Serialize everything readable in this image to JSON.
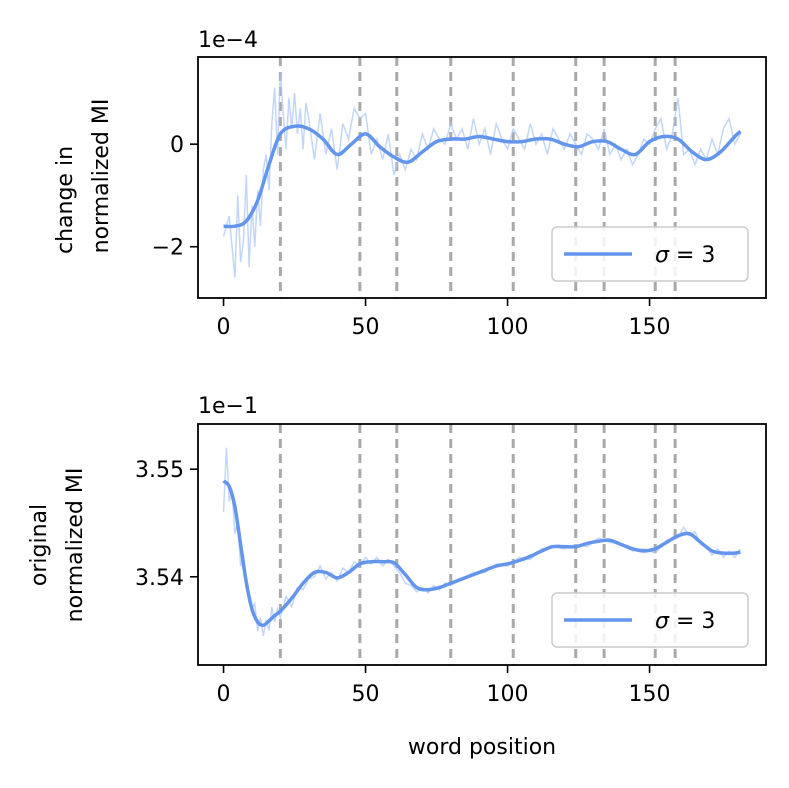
{
  "chart_data": [
    {
      "type": "line",
      "ylabel_lines": [
        "change in",
        "normalized MI"
      ],
      "scale_label": "1e−4",
      "xlim": [
        -9,
        191
      ],
      "ylim": [
        -3.0,
        1.7
      ],
      "x_ticks": [
        0,
        50,
        100,
        150
      ],
      "x_tick_labels": [
        "0",
        "50",
        "100",
        "150"
      ],
      "y_ticks": [
        -2,
        0
      ],
      "y_tick_labels": [
        "−2",
        "0"
      ],
      "vlines": [
        20,
        48,
        61,
        80,
        102,
        124,
        134,
        152,
        159
      ],
      "legend": {
        "label": "σ = 3",
        "sigma": "σ",
        "rest": " = 3",
        "position": "lower-right"
      },
      "series": [
        {
          "name": "σ = 3",
          "style": "smoothed",
          "x": [
            0,
            4,
            8,
            12,
            16,
            20,
            25,
            30,
            35,
            40,
            45,
            50,
            55,
            60,
            65,
            70,
            75,
            80,
            85,
            90,
            95,
            100,
            105,
            110,
            115,
            120,
            125,
            130,
            135,
            140,
            145,
            150,
            155,
            160,
            165,
            170,
            175,
            180,
            182
          ],
          "values": [
            -1.6,
            -1.6,
            -1.5,
            -1.1,
            -0.4,
            0.2,
            0.35,
            0.3,
            0.1,
            -0.2,
            0.0,
            0.2,
            -0.05,
            -0.25,
            -0.35,
            -0.15,
            0.05,
            0.1,
            0.1,
            0.15,
            0.1,
            0.05,
            0.05,
            0.1,
            0.1,
            0.0,
            -0.05,
            0.05,
            0.05,
            -0.1,
            -0.2,
            0.05,
            0.15,
            0.1,
            -0.15,
            -0.3,
            -0.15,
            0.15,
            0.25
          ]
        }
      ],
      "raw": {
        "x": [
          0,
          2,
          4,
          5,
          6,
          7,
          8,
          9,
          10,
          11,
          12,
          13,
          14,
          15,
          16,
          17,
          18,
          19,
          20,
          21,
          22,
          23,
          24,
          25,
          26,
          27,
          28,
          29,
          30,
          32,
          34,
          36,
          38,
          40,
          42,
          44,
          46,
          48,
          50,
          52,
          54,
          56,
          58,
          60,
          62,
          64,
          66,
          68,
          70,
          72,
          74,
          76,
          78,
          80,
          82,
          84,
          86,
          88,
          90,
          92,
          94,
          96,
          98,
          100,
          102,
          104,
          106,
          108,
          110,
          112,
          114,
          116,
          118,
          120,
          122,
          124,
          126,
          128,
          130,
          132,
          134,
          136,
          138,
          140,
          142,
          144,
          146,
          148,
          150,
          152,
          154,
          156,
          158,
          160,
          162,
          164,
          166,
          168,
          170,
          172,
          174,
          176,
          178,
          180,
          182
        ],
        "values": [
          -1.8,
          -1.4,
          -2.6,
          -1.0,
          -2.3,
          -1.9,
          -0.6,
          -2.4,
          -1.2,
          -2.0,
          -0.9,
          -1.6,
          -0.5,
          -0.2,
          -0.9,
          0.4,
          1.1,
          -0.2,
          1.4,
          0.6,
          -0.1,
          0.9,
          0.3,
          1.0,
          0.2,
          0.7,
          -0.1,
          0.8,
          0.5,
          -0.3,
          0.6,
          -0.2,
          0.3,
          -0.5,
          0.4,
          0.1,
          0.7,
          0.5,
          0.6,
          -0.2,
          0.1,
          -0.3,
          0.2,
          -0.6,
          -0.2,
          -0.5,
          -0.1,
          -0.3,
          0.2,
          -0.1,
          0.3,
          0.1,
          0.0,
          0.4,
          0.1,
          0.3,
          -0.1,
          0.5,
          0.0,
          0.3,
          -0.2,
          0.4,
          0.1,
          -0.1,
          0.3,
          0.1,
          -0.1,
          0.4,
          0.0,
          0.2,
          -0.2,
          0.3,
          0.1,
          -0.1,
          0.2,
          0.0,
          -0.2,
          0.2,
          0.1,
          -0.1,
          0.3,
          -0.2,
          0.0,
          -0.3,
          -0.1,
          -0.4,
          -0.2,
          0.1,
          0.0,
          0.3,
          0.5,
          -0.1,
          0.2,
          0.9,
          -0.2,
          -0.1,
          -0.4,
          -0.1,
          -0.3,
          0.1,
          -0.2,
          0.3,
          0.5,
          0.0,
          0.2
        ]
      }
    },
    {
      "type": "line",
      "ylabel_lines": [
        "original",
        "normalized MI"
      ],
      "xlabel": "word position",
      "scale_label": "1e−1",
      "xlim": [
        -9,
        191
      ],
      "ylim": [
        3.5318,
        3.5542
      ],
      "x_ticks": [
        0,
        50,
        100,
        150
      ],
      "x_tick_labels": [
        "0",
        "50",
        "100",
        "150"
      ],
      "y_ticks": [
        3.54,
        3.55
      ],
      "y_tick_labels": [
        "3.54",
        "3.55"
      ],
      "vlines": [
        20,
        48,
        61,
        80,
        102,
        124,
        134,
        152,
        159
      ],
      "legend": {
        "label": "σ = 3",
        "sigma": "σ",
        "rest": " = 3",
        "position": "lower-right"
      },
      "series": [
        {
          "name": "σ = 3",
          "style": "smoothed",
          "x": [
            0,
            2,
            4,
            6,
            8,
            10,
            12,
            14,
            16,
            18,
            20,
            24,
            28,
            32,
            36,
            40,
            44,
            48,
            52,
            56,
            60,
            64,
            68,
            72,
            76,
            80,
            84,
            88,
            92,
            96,
            100,
            104,
            108,
            112,
            116,
            120,
            124,
            128,
            132,
            136,
            140,
            144,
            148,
            152,
            156,
            160,
            164,
            168,
            172,
            176,
            180,
            182
          ],
          "values": [
            3.5489,
            3.5484,
            3.5465,
            3.543,
            3.5395,
            3.537,
            3.5358,
            3.5355,
            3.5359,
            3.5364,
            3.5368,
            3.538,
            3.5394,
            3.5404,
            3.5404,
            3.5399,
            3.5404,
            3.5412,
            3.5414,
            3.5414,
            3.5413,
            3.5402,
            3.539,
            3.5388,
            3.539,
            3.5394,
            3.5398,
            3.5402,
            3.5406,
            3.541,
            3.5412,
            3.5415,
            3.5419,
            3.5424,
            3.5428,
            3.5428,
            3.5428,
            3.5431,
            3.5433,
            3.5434,
            3.543,
            3.5426,
            3.5424,
            3.5426,
            3.5432,
            3.5438,
            3.544,
            3.5432,
            3.5424,
            3.5422,
            3.5422,
            3.5423
          ]
        }
      ],
      "raw": {
        "x": [
          0,
          1,
          2,
          3,
          4,
          5,
          6,
          7,
          8,
          9,
          10,
          11,
          12,
          13,
          14,
          15,
          16,
          17,
          18,
          19,
          20,
          22,
          24,
          26,
          28,
          30,
          32,
          34,
          36,
          38,
          40,
          42,
          44,
          46,
          48,
          50,
          52,
          54,
          56,
          58,
          60,
          62,
          64,
          66,
          68,
          70,
          72,
          74,
          76,
          78,
          80,
          84,
          88,
          92,
          96,
          100,
          104,
          108,
          112,
          116,
          120,
          124,
          128,
          132,
          136,
          140,
          144,
          148,
          152,
          156,
          160,
          162,
          164,
          166,
          168,
          170,
          172,
          174,
          176,
          178,
          180,
          182
        ],
        "values": [
          3.546,
          3.552,
          3.547,
          3.548,
          3.544,
          3.545,
          3.541,
          3.542,
          3.539,
          3.5385,
          3.537,
          3.5375,
          3.535,
          3.5362,
          3.5345,
          3.536,
          3.535,
          3.5372,
          3.5358,
          3.537,
          3.5362,
          3.5382,
          3.5372,
          3.539,
          3.5388,
          3.5398,
          3.54,
          3.541,
          3.5398,
          3.5404,
          3.5396,
          3.5408,
          3.5404,
          3.5414,
          3.541,
          3.5418,
          3.5412,
          3.5418,
          3.541,
          3.5416,
          3.541,
          3.5404,
          3.5394,
          3.5392,
          3.5386,
          3.539,
          3.5385,
          3.5392,
          3.5388,
          3.5394,
          3.5392,
          3.5398,
          3.5404,
          3.5404,
          3.5412,
          3.541,
          3.5418,
          3.5416,
          3.5426,
          3.5428,
          3.5426,
          3.543,
          3.5428,
          3.5436,
          3.5432,
          3.543,
          3.5424,
          3.5426,
          3.5422,
          3.5434,
          3.5436,
          3.5446,
          3.5438,
          3.5442,
          3.543,
          3.5428,
          3.542,
          3.5426,
          3.5418,
          3.5424,
          3.5418,
          3.5426
        ]
      }
    }
  ],
  "colors": {
    "line": "#6495ed",
    "raw": "#a9c4f5",
    "vline": "#a9a9a9",
    "axes": "#000000",
    "legend_border": "#cccccc"
  }
}
